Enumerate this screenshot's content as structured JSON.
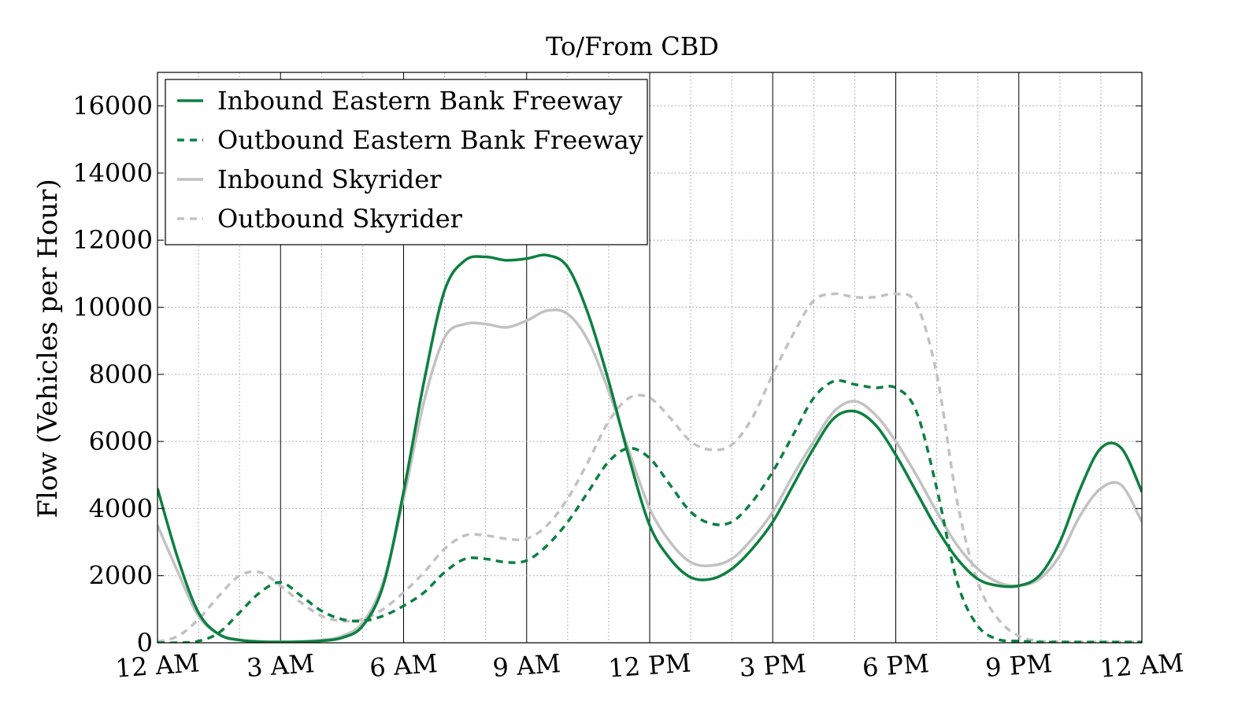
{
  "chart_data": {
    "type": "line",
    "title": "To/From CBD",
    "xlabel": "",
    "ylabel": "Flow (Vehicles per Hour)",
    "xlim": [
      0,
      24
    ],
    "ylim": [
      0,
      17000
    ],
    "x_ticks": [
      {
        "value": 0,
        "label": "12 AM"
      },
      {
        "value": 3,
        "label": "3 AM"
      },
      {
        "value": 6,
        "label": "6 AM"
      },
      {
        "value": 9,
        "label": "9 AM"
      },
      {
        "value": 12,
        "label": "12 PM"
      },
      {
        "value": 15,
        "label": "3 PM"
      },
      {
        "value": 18,
        "label": "6 PM"
      },
      {
        "value": 21,
        "label": "9 PM"
      },
      {
        "value": 24,
        "label": "12 AM"
      }
    ],
    "y_ticks": [
      {
        "value": 0,
        "label": "0"
      },
      {
        "value": 2000,
        "label": "2000"
      },
      {
        "value": 4000,
        "label": "4000"
      },
      {
        "value": 6000,
        "label": "6000"
      },
      {
        "value": 8000,
        "label": "8000"
      },
      {
        "value": 10000,
        "label": "10000"
      },
      {
        "value": 12000,
        "label": "12000"
      },
      {
        "value": 14000,
        "label": "14000"
      },
      {
        "value": 16000,
        "label": "16000"
      }
    ],
    "grid": true,
    "legend_position": "top-left",
    "series": [
      {
        "name": "Inbound Eastern Bank Freeway",
        "color": "#0c8040",
        "dashed": false,
        "x": [
          0,
          0.5,
          1,
          1.5,
          2,
          2.5,
          3,
          3.5,
          4,
          4.5,
          5,
          5.5,
          6,
          6.5,
          7,
          7.5,
          8,
          8.5,
          9,
          9.5,
          10,
          10.5,
          11,
          11.5,
          12,
          12.5,
          13,
          13.5,
          14,
          14.5,
          15,
          15.5,
          16,
          16.5,
          17,
          17.5,
          18,
          18.5,
          19,
          19.5,
          20,
          20.5,
          21,
          21.5,
          22,
          22.5,
          23,
          23.5,
          24
        ],
        "y": [
          4600,
          2500,
          900,
          250,
          80,
          30,
          20,
          30,
          60,
          150,
          500,
          1700,
          4500,
          7800,
          10500,
          11400,
          11500,
          11400,
          11450,
          11550,
          11200,
          9800,
          7800,
          5500,
          3500,
          2500,
          1950,
          1900,
          2200,
          2800,
          3600,
          4700,
          5800,
          6700,
          6900,
          6500,
          5600,
          4500,
          3400,
          2500,
          1900,
          1700,
          1700,
          2000,
          3000,
          4600,
          5800,
          5800,
          4500
        ]
      },
      {
        "name": "Outbound Eastern Bank Freeway",
        "color": "#0c8040",
        "dashed": true,
        "x": [
          0,
          0.5,
          1,
          1.5,
          2,
          2.5,
          3,
          3.5,
          4,
          4.5,
          5,
          5.5,
          6,
          6.5,
          7,
          7.5,
          8,
          8.5,
          9,
          9.5,
          10,
          10.5,
          11,
          11.5,
          12,
          12.5,
          13,
          13.5,
          14,
          14.5,
          15,
          15.5,
          16,
          16.5,
          17,
          17.5,
          18,
          18.5,
          19,
          19.5,
          20,
          20.5,
          21,
          21.5,
          22,
          22.5,
          23,
          23.5,
          24
        ],
        "y": [
          0,
          0,
          50,
          300,
          900,
          1500,
          1800,
          1400,
          950,
          700,
          650,
          800,
          1100,
          1500,
          2100,
          2500,
          2500,
          2400,
          2450,
          2900,
          3600,
          4500,
          5400,
          5800,
          5500,
          4700,
          3900,
          3550,
          3600,
          4200,
          5100,
          6200,
          7300,
          7800,
          7700,
          7600,
          7600,
          6900,
          4600,
          1800,
          500,
          100,
          50,
          20,
          20,
          20,
          20,
          20,
          20
        ]
      },
      {
        "name": "Inbound Skyrider",
        "color": "#c2c2c2",
        "dashed": false,
        "x": [
          0,
          0.5,
          1,
          1.5,
          2,
          2.5,
          3,
          3.5,
          4,
          4.5,
          5,
          5.5,
          6,
          6.5,
          7,
          7.5,
          8,
          8.5,
          9,
          9.5,
          10,
          10.5,
          11,
          11.5,
          12,
          12.5,
          13,
          13.5,
          14,
          14.5,
          15,
          15.5,
          16,
          16.5,
          17,
          17.5,
          18,
          18.5,
          19,
          19.5,
          20,
          20.5,
          21,
          21.5,
          22,
          22.5,
          23,
          23.5,
          24
        ],
        "y": [
          3500,
          2100,
          800,
          250,
          90,
          40,
          30,
          40,
          80,
          200,
          600,
          1800,
          4300,
          7200,
          9100,
          9500,
          9500,
          9400,
          9600,
          9900,
          9800,
          9000,
          7500,
          5700,
          4000,
          3000,
          2400,
          2300,
          2500,
          3100,
          3900,
          5000,
          6000,
          6900,
          7200,
          6800,
          6000,
          5000,
          3900,
          2900,
          2200,
          1800,
          1700,
          1900,
          2600,
          3800,
          4600,
          4700,
          3600
        ]
      },
      {
        "name": "Outbound Skyrider",
        "color": "#c2c2c2",
        "dashed": true,
        "x": [
          0,
          0.5,
          1,
          1.5,
          2,
          2.5,
          3,
          3.5,
          4,
          4.5,
          5,
          5.5,
          6,
          6.5,
          7,
          7.5,
          8,
          8.5,
          9,
          9.5,
          10,
          10.5,
          11,
          11.5,
          12,
          12.5,
          13,
          13.5,
          14,
          14.5,
          15,
          15.5,
          16,
          16.5,
          17,
          17.5,
          18,
          18.5,
          19,
          19.5,
          20,
          20.5,
          21,
          21.5,
          22,
          22.5,
          23,
          23.5,
          24
        ],
        "y": [
          30,
          200,
          700,
          1400,
          2000,
          2100,
          1700,
          1200,
          800,
          650,
          700,
          1000,
          1500,
          2100,
          2800,
          3200,
          3200,
          3100,
          3100,
          3500,
          4300,
          5400,
          6600,
          7300,
          7300,
          6700,
          6000,
          5750,
          5900,
          6700,
          8000,
          9200,
          10200,
          10400,
          10300,
          10300,
          10400,
          10100,
          8000,
          4200,
          1800,
          700,
          200,
          50,
          30,
          20,
          20,
          20,
          20
        ]
      }
    ]
  }
}
